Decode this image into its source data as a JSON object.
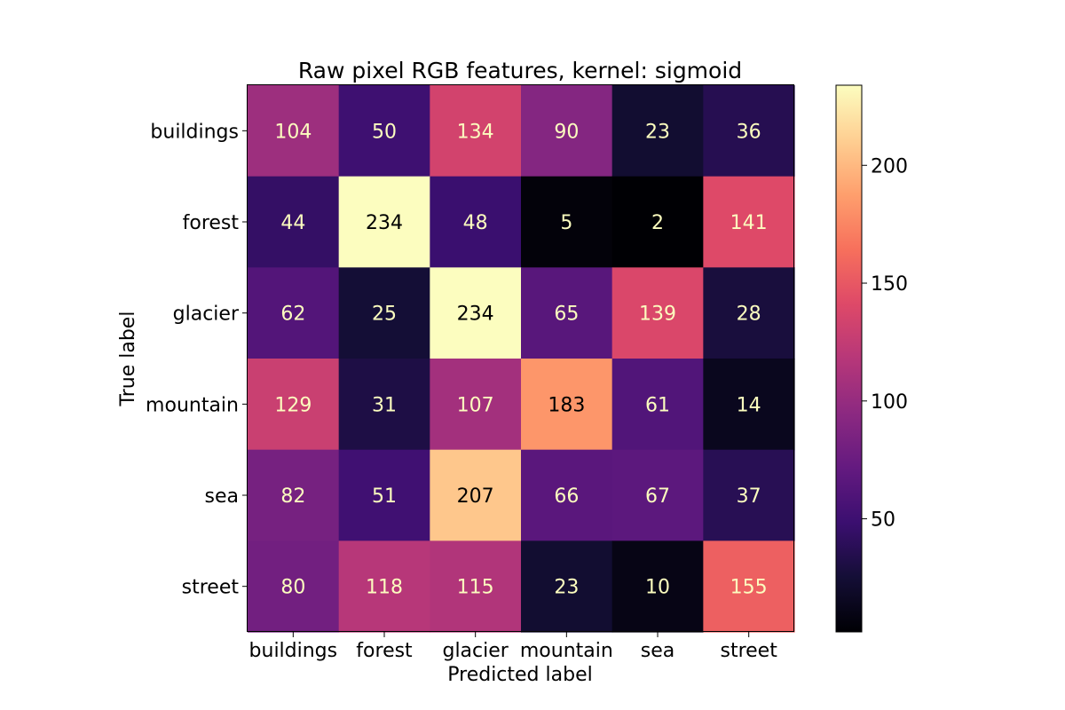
{
  "chart_data": {
    "type": "heatmap",
    "title": "Raw pixel RGB features, kernel: sigmoid",
    "xlabel": "Predicted label",
    "ylabel": "True label",
    "x_categories": [
      "buildings",
      "forest",
      "glacier",
      "mountain",
      "sea",
      "street"
    ],
    "y_categories": [
      "buildings",
      "forest",
      "glacier",
      "mountain",
      "sea",
      "street"
    ],
    "values": [
      [
        104,
        50,
        134,
        90,
        23,
        36
      ],
      [
        44,
        234,
        48,
        5,
        2,
        141
      ],
      [
        62,
        25,
        234,
        65,
        139,
        28
      ],
      [
        129,
        31,
        107,
        183,
        61,
        14
      ],
      [
        82,
        51,
        207,
        66,
        67,
        37
      ],
      [
        80,
        118,
        115,
        23,
        10,
        155
      ]
    ],
    "colormap": "magma",
    "color_range": [
      2,
      234
    ],
    "colorbar_ticks": [
      50,
      100,
      150,
      200
    ],
    "grid": false
  }
}
